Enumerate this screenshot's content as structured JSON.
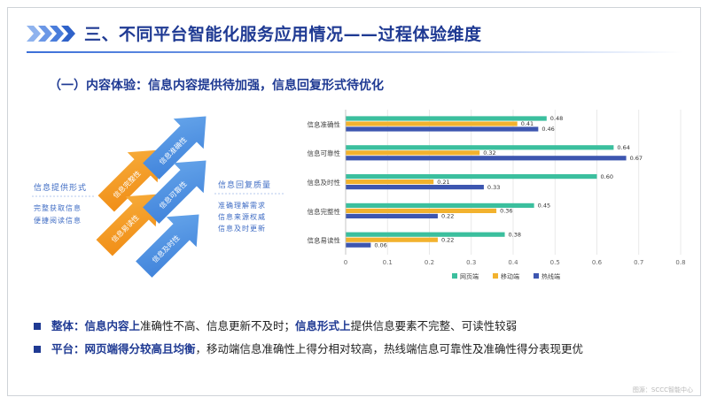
{
  "slide": {
    "title": "三、不同平台智能化服务应用情况——过程体验维度",
    "subtitle": "（一）内容体验：信息内容提供待加强，信息回复形式待优化",
    "watermark": "图源：SCCC智能中心"
  },
  "diagram": {
    "left_heading": "信息提供形式",
    "left_lines": [
      "完整获取信息",
      "便捷阅读信息"
    ],
    "orange_arrows": [
      "信息完整性",
      "信息易读性"
    ],
    "blue_arrows": [
      "信息准确性",
      "信息可靠性",
      "信息及时性"
    ],
    "right_heading": "信息回复质量",
    "right_lines": [
      "准确理解需求",
      "信息来源权威",
      "信息及时更新"
    ],
    "colors": {
      "orange": "#f39a1f",
      "blue": "#4a8fe0",
      "label": "#3f6cc4"
    }
  },
  "chart_data": {
    "type": "bar",
    "orientation": "horizontal",
    "categories": [
      "信息准确性",
      "信息可靠性",
      "信息及时性",
      "信息完整性",
      "信息易读性"
    ],
    "series": [
      {
        "name": "网页端",
        "color": "#3bbf9e",
        "values": [
          0.48,
          0.64,
          0.6,
          0.45,
          0.38
        ]
      },
      {
        "name": "移动端",
        "color": "#f2b22e",
        "values": [
          0.41,
          0.32,
          0.21,
          0.36,
          0.22
        ]
      },
      {
        "name": "热线端",
        "color": "#3d56b0",
        "values": [
          0.46,
          0.67,
          0.33,
          0.22,
          0.06
        ]
      }
    ],
    "value_labels": [
      [
        "0.48",
        "0.41",
        "0.46"
      ],
      [
        "0.64",
        "0.32",
        "0.67"
      ],
      [
        "0.60",
        "0.21",
        "0.33"
      ],
      [
        "0.45",
        "0.36",
        "0.22"
      ],
      [
        "0.38",
        "0.22",
        "0.06"
      ]
    ],
    "xlim": [
      0,
      0.8
    ],
    "xticks": [
      0,
      0.1,
      0.2,
      0.3,
      0.4,
      0.5,
      0.6,
      0.7,
      0.8
    ],
    "xtick_labels": [
      "0",
      "0.1",
      "0.2",
      "0.3",
      "0.4",
      "0.5",
      "0.6",
      "0.7",
      "0.8"
    ],
    "grid": true,
    "legend_position": "bottom"
  },
  "bullets": [
    {
      "parts": [
        {
          "text": "整体：",
          "hl": true
        },
        {
          "text": "信息内容上",
          "hl": true
        },
        {
          "text": "准确性不高、信息更新不及时；",
          "hl": false
        },
        {
          "text": "信息形式上",
          "hl": true
        },
        {
          "text": "提供信息要素不完整、可读性较弱",
          "hl": false
        }
      ]
    },
    {
      "parts": [
        {
          "text": "平台：",
          "hl": true
        },
        {
          "text": "网页端得分较高且均衡",
          "hl": true
        },
        {
          "text": "，移动端信息准确性上得分相对较高，热线端信息可靠性及准确性得分表现更优",
          "hl": false
        }
      ]
    }
  ]
}
